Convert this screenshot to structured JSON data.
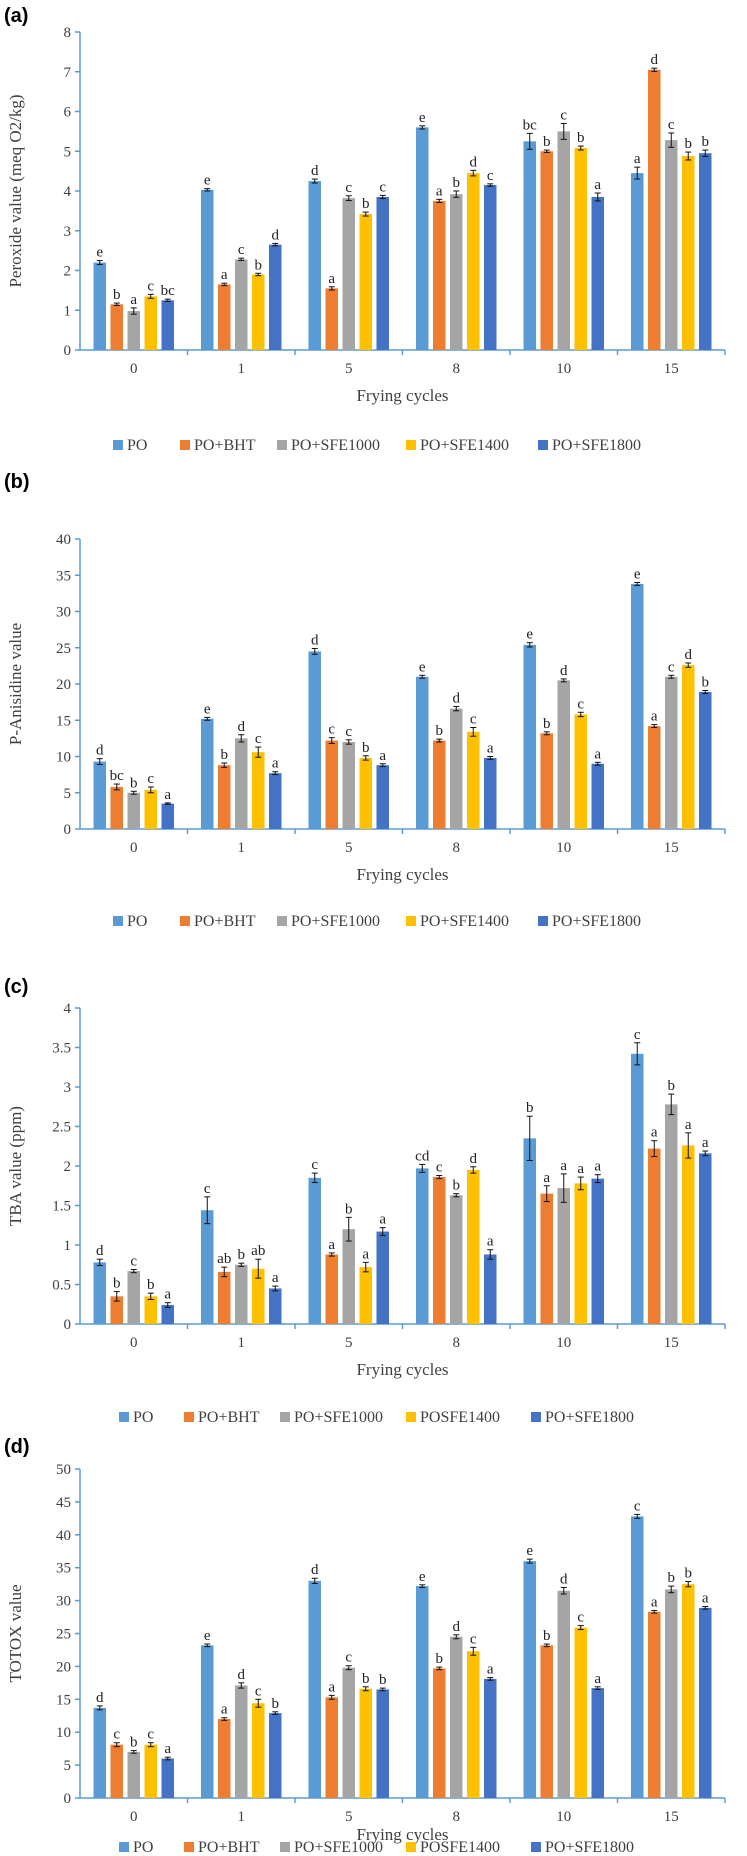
{
  "colors": [
    "#5B9BD5",
    "#ED7D31",
    "#A5A5A5",
    "#FFC000",
    "#4472C4"
  ],
  "chart_data": [
    {
      "type": "bar",
      "panel": "(a)",
      "ylabel": "Peroxide value (meq O2/kg)",
      "xlabel": "Frying cycles",
      "categories": [
        "0",
        "1",
        "5",
        "8",
        "10",
        "15"
      ],
      "ylim": [
        0,
        8
      ],
      "yticks": [
        "0",
        "1",
        "2",
        "3",
        "4",
        "5",
        "6",
        "7",
        "8"
      ],
      "legend_position": "bottom",
      "series": [
        {
          "name": "PO",
          "values": [
            2.2,
            4.03,
            4.25,
            5.6,
            5.25,
            4.45
          ],
          "errors": [
            0.05,
            0.03,
            0.05,
            0.04,
            0.2,
            0.15
          ],
          "labels": [
            "e",
            "e",
            "d",
            "e",
            "bc",
            "a"
          ]
        },
        {
          "name": "PO+BHT",
          "values": [
            1.15,
            1.65,
            1.55,
            3.75,
            5.0,
            7.05
          ],
          "errors": [
            0.03,
            0.03,
            0.04,
            0.04,
            0.03,
            0.04
          ],
          "labels": [
            "b",
            "a",
            "a",
            "a",
            "b",
            "d"
          ]
        },
        {
          "name": "PO+SFE1000",
          "values": [
            0.98,
            2.28,
            3.82,
            3.92,
            5.5,
            5.28
          ],
          "errors": [
            0.08,
            0.03,
            0.06,
            0.08,
            0.2,
            0.18
          ],
          "labels": [
            "a",
            "c",
            "c",
            "b",
            "c",
            "c"
          ]
        },
        {
          "name": "PO+SFE1400",
          "values": [
            1.35,
            1.9,
            3.42,
            4.45,
            5.08,
            4.88
          ],
          "errors": [
            0.05,
            0.03,
            0.05,
            0.07,
            0.05,
            0.1
          ],
          "labels": [
            "c",
            "b",
            "b",
            "d",
            "b",
            "b"
          ]
        },
        {
          "name": "PO+SFE1800",
          "values": [
            1.25,
            2.65,
            3.85,
            4.15,
            3.85,
            4.95
          ],
          "errors": [
            0.03,
            0.03,
            0.04,
            0.03,
            0.1,
            0.08
          ],
          "labels": [
            "bc",
            "d",
            "c",
            "c",
            "a",
            "b"
          ]
        }
      ]
    },
    {
      "type": "bar",
      "panel": "(b)",
      "ylabel": "P-Anisidine value",
      "xlabel": "Frying cycles",
      "categories": [
        "0",
        "1",
        "5",
        "8",
        "10",
        "15"
      ],
      "ylim": [
        0,
        40
      ],
      "yticks": [
        "0",
        "5",
        "10",
        "15",
        "20",
        "25",
        "30",
        "35",
        "40"
      ],
      "legend_position": "bottom",
      "series": [
        {
          "name": "PO",
          "values": [
            9.3,
            15.2,
            24.5,
            21.0,
            25.4,
            33.8
          ],
          "errors": [
            0.4,
            0.2,
            0.4,
            0.2,
            0.3,
            0.2
          ],
          "labels": [
            "d",
            "e",
            "d",
            "e",
            "e",
            "e"
          ]
        },
        {
          "name": "PO+BHT",
          "values": [
            5.8,
            8.8,
            12.2,
            12.2,
            13.2,
            14.2
          ],
          "errors": [
            0.4,
            0.3,
            0.4,
            0.2,
            0.2,
            0.2
          ],
          "labels": [
            "bc",
            "b",
            "c",
            "b",
            "b",
            "a"
          ]
        },
        {
          "name": "PO+SFE1000",
          "values": [
            5.0,
            12.5,
            12.0,
            16.6,
            20.5,
            21.0
          ],
          "errors": [
            0.2,
            0.5,
            0.3,
            0.3,
            0.2,
            0.2
          ],
          "labels": [
            "b",
            "d",
            "c",
            "d",
            "d",
            "c"
          ]
        },
        {
          "name": "PO+SFE1400",
          "values": [
            5.4,
            10.6,
            9.8,
            13.4,
            15.8,
            22.6
          ],
          "errors": [
            0.4,
            0.7,
            0.3,
            0.6,
            0.3,
            0.3
          ],
          "labels": [
            "c",
            "c",
            "b",
            "c",
            "c",
            "d"
          ]
        },
        {
          "name": "PO+SFE1800",
          "values": [
            3.5,
            7.7,
            8.8,
            9.8,
            9.0,
            18.9
          ],
          "errors": [
            0.1,
            0.2,
            0.2,
            0.2,
            0.2,
            0.2
          ],
          "labels": [
            "a",
            "a",
            "a",
            "a",
            "a",
            "b"
          ]
        }
      ]
    },
    {
      "type": "bar",
      "panel": "(c)",
      "ylabel": "TBA value (ppm)",
      "xlabel": "Frying cycles",
      "categories": [
        "0",
        "1",
        "5",
        "8",
        "10",
        "15"
      ],
      "ylim": [
        0,
        4
      ],
      "yticks": [
        "0",
        "0.5",
        "1",
        "1.5",
        "2",
        "2.5",
        "3",
        "3.5",
        "4"
      ],
      "legend_position": "bottom",
      "series": [
        {
          "name": "PO",
          "values": [
            0.78,
            1.44,
            1.85,
            1.97,
            2.35,
            3.42
          ],
          "errors": [
            0.04,
            0.17,
            0.06,
            0.05,
            0.28,
            0.14
          ],
          "labels": [
            "d",
            "c",
            "c",
            "cd",
            "b",
            "c"
          ]
        },
        {
          "name": "PO+BHT",
          "values": [
            0.35,
            0.66,
            0.88,
            1.86,
            1.65,
            2.22
          ],
          "errors": [
            0.06,
            0.06,
            0.02,
            0.02,
            0.1,
            0.1
          ],
          "labels": [
            "b",
            "ab",
            "a",
            "c",
            "a",
            "a"
          ]
        },
        {
          "name": "PO+SFE1000",
          "values": [
            0.67,
            0.75,
            1.2,
            1.63,
            1.72,
            2.78
          ],
          "errors": [
            0.02,
            0.02,
            0.15,
            0.02,
            0.18,
            0.13
          ],
          "labels": [
            "c",
            "b",
            "b",
            "b",
            "a",
            "b"
          ]
        },
        {
          "name": "POSFE1400",
          "values": [
            0.35,
            0.7,
            0.72,
            1.95,
            1.78,
            2.26
          ],
          "errors": [
            0.04,
            0.12,
            0.06,
            0.04,
            0.08,
            0.16
          ],
          "labels": [
            "b",
            "ab",
            "a",
            "d",
            "a",
            "a"
          ]
        },
        {
          "name": "PO+SFE1800",
          "values": [
            0.24,
            0.45,
            1.17,
            0.88,
            1.84,
            2.16
          ],
          "errors": [
            0.03,
            0.03,
            0.05,
            0.06,
            0.05,
            0.03
          ],
          "labels": [
            "a",
            "a",
            "a",
            "a",
            "a",
            "a"
          ]
        }
      ]
    },
    {
      "type": "bar",
      "panel": "(d)",
      "ylabel": "TOTOX value",
      "xlabel": "Frying cycles",
      "categories": [
        "0",
        "1",
        "5",
        "8",
        "10",
        "15"
      ],
      "ylim": [
        0,
        50
      ],
      "yticks": [
        "0",
        "5",
        "10",
        "15",
        "20",
        "25",
        "30",
        "35",
        "40",
        "45",
        "50"
      ],
      "legend_position": "bottom",
      "series": [
        {
          "name": "PO",
          "values": [
            13.7,
            23.2,
            33.0,
            32.2,
            36.0,
            42.8
          ],
          "errors": [
            0.3,
            0.2,
            0.4,
            0.2,
            0.3,
            0.3
          ],
          "labels": [
            "d",
            "e",
            "d",
            "e",
            "e",
            "c"
          ]
        },
        {
          "name": "PO+BHT",
          "values": [
            8.1,
            12.0,
            15.3,
            19.7,
            23.2,
            28.3
          ],
          "errors": [
            0.3,
            0.2,
            0.3,
            0.2,
            0.2,
            0.2
          ],
          "labels": [
            "c",
            "a",
            "a",
            "b",
            "b",
            "a"
          ]
        },
        {
          "name": "PO+SFE1000",
          "values": [
            7.0,
            17.1,
            19.8,
            24.5,
            31.5,
            31.7
          ],
          "errors": [
            0.2,
            0.4,
            0.3,
            0.3,
            0.5,
            0.5
          ],
          "labels": [
            "b",
            "d",
            "c",
            "d",
            "d",
            "b"
          ]
        },
        {
          "name": "POSFE1400",
          "values": [
            8.1,
            14.4,
            16.6,
            22.3,
            25.9,
            32.5
          ],
          "errors": [
            0.3,
            0.6,
            0.3,
            0.6,
            0.3,
            0.4
          ],
          "labels": [
            "c",
            "c",
            "b",
            "c",
            "c",
            "b"
          ]
        },
        {
          "name": "PO+SFE1800",
          "values": [
            6.0,
            12.9,
            16.5,
            18.1,
            16.7,
            28.9
          ],
          "errors": [
            0.2,
            0.2,
            0.2,
            0.2,
            0.2,
            0.2
          ],
          "labels": [
            "a",
            "b",
            "b",
            "a",
            "a",
            "a"
          ]
        }
      ]
    }
  ]
}
